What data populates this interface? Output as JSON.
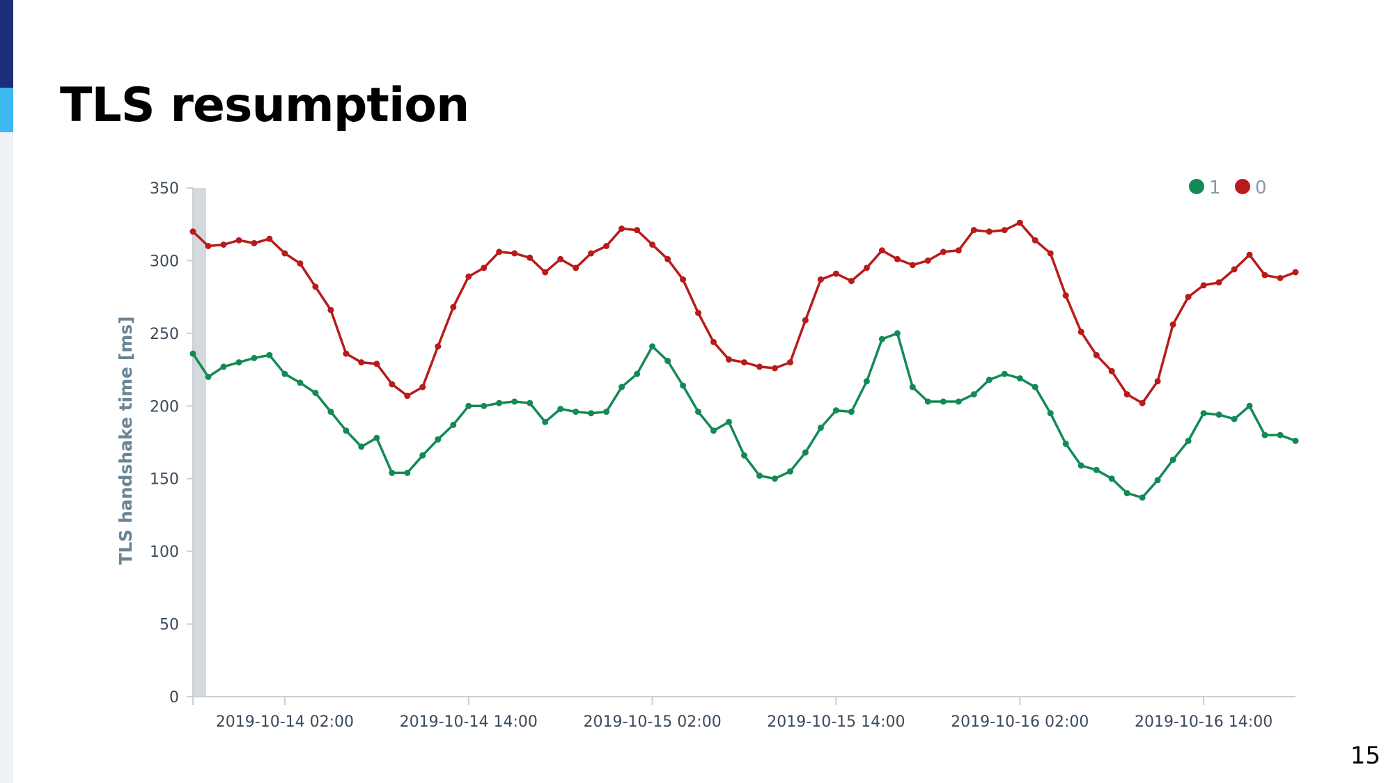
{
  "slide": {
    "title": "TLS resumption",
    "page_number": "15",
    "accent_dark": "#1a2e7a",
    "accent_light": "#3ab8ef"
  },
  "chart_data": {
    "type": "line",
    "title": "",
    "xlabel": "",
    "ylabel": "TLS handshake time [ms]",
    "ylim": [
      0,
      350
    ],
    "yticks": [
      0,
      50,
      100,
      150,
      200,
      250,
      300,
      350
    ],
    "xlim": [
      "2019-10-13 20:00",
      "2019-10-16 20:00"
    ],
    "xticks": [
      "2019-10-14 02:00",
      "2019-10-14 14:00",
      "2019-10-15 02:00",
      "2019-10-15 14:00",
      "2019-10-16 02:00",
      "2019-10-16 14:00"
    ],
    "x_interval": "1 hour",
    "x_start": "2019-10-13 20:00",
    "legend_position": "top-right",
    "grid": false,
    "series": [
      {
        "name": "1",
        "color": "#138a55",
        "values": [
          236,
          220,
          227,
          230,
          233,
          235,
          222,
          216,
          209,
          196,
          183,
          172,
          178,
          154,
          154,
          166,
          177,
          187,
          200,
          200,
          202,
          203,
          202,
          189,
          198,
          196,
          195,
          196,
          213,
          222,
          241,
          231,
          214,
          196,
          183,
          189,
          166,
          152,
          150,
          155,
          168,
          185,
          197,
          196,
          217,
          246,
          250,
          213,
          203,
          203,
          203,
          208,
          218,
          222,
          219,
          213,
          195,
          174,
          159,
          156,
          150,
          140,
          137,
          149,
          163,
          176,
          195,
          194,
          191,
          200,
          180,
          180,
          176
        ]
      },
      {
        "name": "0",
        "color": "#b81b1b",
        "values": [
          320,
          310,
          311,
          314,
          312,
          315,
          305,
          298,
          282,
          266,
          236,
          230,
          229,
          215,
          207,
          213,
          241,
          268,
          289,
          295,
          306,
          305,
          302,
          292,
          301,
          295,
          305,
          310,
          322,
          321,
          311,
          301,
          287,
          264,
          244,
          232,
          230,
          227,
          226,
          230,
          259,
          287,
          291,
          286,
          295,
          307,
          301,
          297,
          300,
          306,
          307,
          321,
          320,
          321,
          326,
          314,
          305,
          276,
          251,
          235,
          224,
          208,
          202,
          217,
          256,
          275,
          283,
          285,
          294,
          304,
          290,
          288,
          292
        ]
      }
    ]
  }
}
